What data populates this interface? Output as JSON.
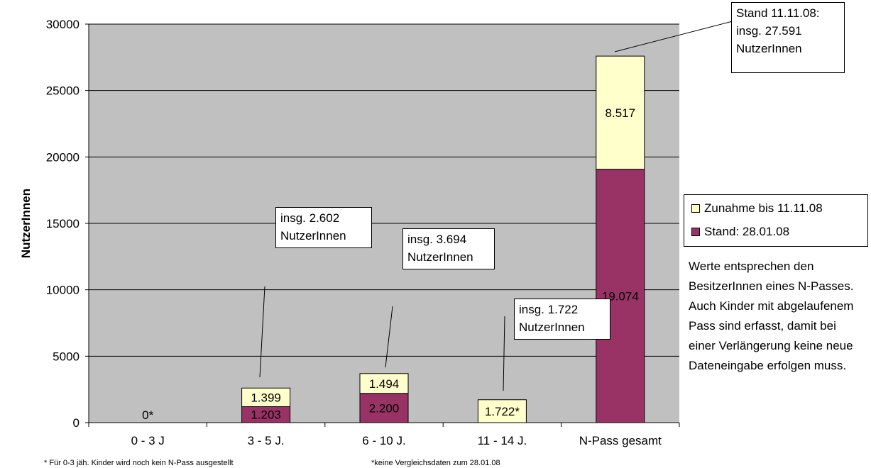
{
  "chart_data": {
    "type": "bar",
    "stacked": true,
    "categories": [
      "0 - 3 J",
      "3 - 5 J.",
      "6 - 10 J.",
      "11 - 14 J.",
      "N-Pass gesamt"
    ],
    "series": [
      {
        "name": "Stand: 28.01.08",
        "color": "#993366",
        "values": [
          0,
          1203,
          2200,
          0,
          19074
        ]
      },
      {
        "name": "Zunahme bis 11.11.08",
        "color": "#FFFFCC",
        "values": [
          0,
          1399,
          1494,
          1722,
          8517
        ]
      }
    ],
    "segment_labels": {
      "Stand: 28.01.08": [
        "0*",
        "1.203",
        "2.200",
        "",
        "19.074"
      ],
      "Zunahme bis 11.11.08": [
        "",
        "1.399",
        "1.494",
        "1.722*",
        "8.517"
      ]
    },
    "ylabel": "NutzerInnen",
    "ylim": [
      0,
      30000
    ],
    "yticks": [
      "0",
      "5000",
      "10000",
      "15000",
      "20000",
      "25000",
      "30000"
    ],
    "grid": true,
    "plot_background": "#C0C0C0",
    "legend_position": "right"
  },
  "callouts": [
    {
      "line1": "insg. 2.602",
      "line2": "NutzerInnen"
    },
    {
      "line1": "insg. 3.694",
      "line2": "NutzerInnen"
    },
    {
      "line1": "insg. 1.722",
      "line2": "NutzerInnen"
    },
    {
      "line1": "Stand 11.11.08:",
      "line2": "insg. 27.591",
      "line3": "NutzerInnen"
    }
  ],
  "note": "Werte entsprechen den BesitzerInnen eines N-Passes. Auch Kinder mit abgelaufenem Pass sind erfasst, damit bei einer Verlängerung keine neue Dateneingabe erfolgen muss.",
  "footnotes": {
    "left": "* Für 0-3 jäh. Kinder wird noch kein N-Pass ausgestellt",
    "right": "*keine Vergleichsdaten zum 28.01.08"
  }
}
